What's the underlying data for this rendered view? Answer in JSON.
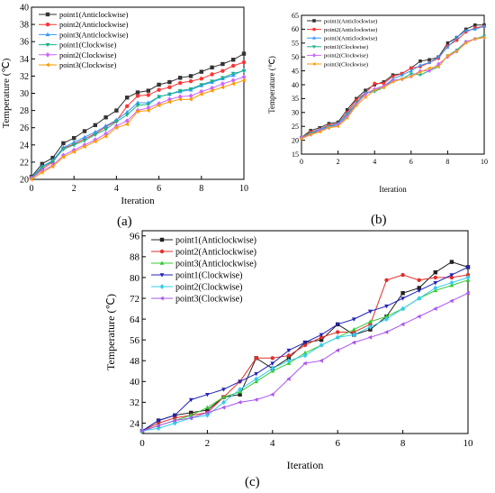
{
  "panels": [
    {
      "label": "(a)"
    },
    {
      "label": "(b)"
    },
    {
      "label": "(c)"
    }
  ],
  "chart_data": [
    {
      "type": "line",
      "panel": "(a)",
      "xlabel": "Iteration",
      "ylabel": "Temperature (℃)",
      "xlim": [
        0,
        10
      ],
      "ylim": [
        20,
        40
      ],
      "xticks": [
        0,
        2,
        4,
        6,
        8,
        10
      ],
      "yticks": [
        20,
        22,
        24,
        26,
        28,
        30,
        32,
        34,
        36,
        38,
        40
      ],
      "legend_position": "top-left",
      "grid": false,
      "x": [
        0,
        0.5,
        1,
        1.5,
        2,
        2.5,
        3,
        3.5,
        4,
        4.5,
        5,
        5.5,
        6,
        6.5,
        7,
        7.5,
        8,
        8.5,
        9,
        9.5,
        10
      ],
      "series": [
        {
          "name": "point1(Anticlockwise)",
          "color": "#333333",
          "marker": "square",
          "values": [
            20.3,
            21.8,
            22.5,
            24.2,
            24.8,
            25.6,
            26.3,
            27.2,
            28.0,
            29.5,
            30.1,
            30.3,
            31.0,
            31.3,
            31.8,
            32.0,
            32.5,
            33.0,
            33.4,
            33.9,
            34.6
          ]
        },
        {
          "name": "point2(Anticlockwise)",
          "color": "#ff3333",
          "marker": "circle",
          "values": [
            20.2,
            21.2,
            22.0,
            23.6,
            24.1,
            24.7,
            25.3,
            26.1,
            26.8,
            28.5,
            29.7,
            29.8,
            30.4,
            30.7,
            31.2,
            31.4,
            31.7,
            32.2,
            32.6,
            33.2,
            33.6
          ]
        },
        {
          "name": "point3(Anticlockwise)",
          "color": "#3399ff",
          "marker": "triangle-up",
          "values": [
            20.2,
            21.5,
            22.2,
            23.7,
            24.3,
            24.9,
            25.5,
            26.2,
            26.9,
            27.8,
            28.9,
            28.9,
            29.6,
            29.9,
            30.2,
            30.4,
            30.9,
            31.3,
            31.7,
            32.1,
            32.7
          ]
        },
        {
          "name": "point1(Clockwise)",
          "color": "#19b38a",
          "marker": "triangle-down",
          "values": [
            20.1,
            21.4,
            22.1,
            23.5,
            24.0,
            24.5,
            25.2,
            25.8,
            26.7,
            27.5,
            28.6,
            28.7,
            29.6,
            29.9,
            30.3,
            30.5,
            31.0,
            31.4,
            31.8,
            32.3,
            32.6
          ]
        },
        {
          "name": "point2(Clockwise)",
          "color": "#cc66ff",
          "marker": "diamond",
          "values": [
            20.1,
            21.0,
            21.6,
            22.8,
            23.4,
            24.0,
            24.6,
            25.3,
            26.2,
            26.8,
            28.0,
            28.3,
            28.8,
            29.3,
            29.6,
            29.7,
            30.2,
            30.6,
            31.1,
            31.5,
            31.9
          ]
        },
        {
          "name": "point3(Clockwise)",
          "color": "#ff9900",
          "marker": "triangle-left",
          "values": [
            20.0,
            20.8,
            21.5,
            22.6,
            23.2,
            23.8,
            24.4,
            25.0,
            26.0,
            26.4,
            27.9,
            28.0,
            28.6,
            29.0,
            29.3,
            29.3,
            29.9,
            30.3,
            30.7,
            31.1,
            31.5
          ]
        }
      ]
    },
    {
      "type": "line",
      "panel": "(b)",
      "xlabel": "Iteration",
      "ylabel": "Temperature (℃)",
      "xlim": [
        0,
        10
      ],
      "ylim": [
        15,
        65
      ],
      "xticks": [
        0,
        2,
        4,
        6,
        8,
        10
      ],
      "yticks": [
        15,
        20,
        25,
        30,
        35,
        40,
        45,
        50,
        55,
        60,
        65
      ],
      "legend_position": "top-left",
      "grid": false,
      "x": [
        0,
        0.5,
        1,
        1.5,
        2,
        2.5,
        3,
        3.5,
        4,
        4.5,
        5,
        5.5,
        6,
        6.5,
        7,
        7.5,
        8,
        8.5,
        9,
        9.5,
        10
      ],
      "series": [
        {
          "name": "point1(Anticlockwise)",
          "color": "#333333",
          "marker": "square",
          "values": [
            21.0,
            23.5,
            24.5,
            26.0,
            26.5,
            31.0,
            35.0,
            38.0,
            40.0,
            41.0,
            43.5,
            44.0,
            46.0,
            48.5,
            49.0,
            50.0,
            55.0,
            57.0,
            60.0,
            61.5,
            61.5
          ]
        },
        {
          "name": "point2(Anticlockwise)",
          "color": "#ff3333",
          "marker": "circle",
          "values": [
            21.0,
            23.0,
            24.0,
            25.5,
            26.0,
            30.0,
            34.5,
            37.0,
            40.5,
            40.5,
            43.0,
            44.0,
            46.0,
            46.5,
            48.0,
            49.5,
            54.0,
            56.0,
            59.0,
            60.5,
            61.0
          ]
        },
        {
          "name": "point3(Anticlockwise)",
          "color": "#3399ff",
          "marker": "triangle-up",
          "values": [
            21.0,
            22.5,
            24.0,
            25.0,
            26.0,
            29.5,
            33.5,
            37.0,
            38.0,
            39.5,
            42.0,
            43.5,
            45.0,
            47.0,
            48.0,
            50.0,
            53.5,
            57.0,
            59.5,
            60.0,
            61.0
          ]
        },
        {
          "name": "point1(Clockwise)",
          "color": "#19b38a",
          "marker": "triangle-down",
          "values": [
            21.0,
            22.5,
            23.5,
            25.0,
            25.5,
            29.0,
            33.5,
            37.0,
            37.5,
            39.0,
            41.5,
            42.0,
            44.0,
            43.5,
            45.0,
            46.5,
            50.5,
            52.5,
            55.5,
            56.5,
            57.5
          ]
        },
        {
          "name": "point2(Clockwise)",
          "color": "#cc66ff",
          "marker": "diamond",
          "values": [
            21.0,
            22.0,
            23.5,
            24.5,
            25.5,
            28.5,
            33.0,
            36.5,
            38.5,
            39.5,
            41.5,
            42.0,
            43.0,
            45.0,
            45.0,
            47.5,
            50.0,
            52.0,
            55.5,
            56.5,
            57.0
          ]
        },
        {
          "name": "point3(Clockwise)",
          "color": "#ff9900",
          "marker": "triangle-left",
          "values": [
            20.5,
            22.0,
            23.0,
            24.5,
            25.0,
            28.0,
            32.5,
            35.5,
            38.0,
            39.0,
            41.0,
            42.0,
            43.0,
            44.5,
            46.0,
            46.5,
            50.5,
            52.0,
            55.0,
            56.5,
            57.0
          ]
        }
      ]
    },
    {
      "type": "line",
      "panel": "(c)",
      "xlabel": "Iteration",
      "ylabel": "Temperature (℃)",
      "xlim": [
        0,
        10
      ],
      "ylim": [
        20,
        98
      ],
      "xticks": [
        0,
        2,
        4,
        6,
        8,
        10
      ],
      "yticks": [
        24,
        32,
        40,
        48,
        56,
        64,
        72,
        80,
        88,
        96
      ],
      "legend_position": "top-left",
      "grid": false,
      "x": [
        0,
        0.5,
        1,
        1.5,
        2,
        2.5,
        3,
        3.5,
        4,
        4.5,
        5,
        5.5,
        6,
        6.5,
        7,
        7.5,
        8,
        8.5,
        9,
        9.5,
        10
      ],
      "series": [
        {
          "name": "point1(Anticlockwise)",
          "color": "#222222",
          "marker": "square",
          "values": [
            21,
            25,
            27,
            28,
            29,
            34,
            35,
            49,
            45,
            49,
            55,
            56,
            62,
            58,
            60,
            65,
            74,
            76,
            82,
            86,
            84
          ]
        },
        {
          "name": "point2(Anticlockwise)",
          "color": "#e0302a",
          "marker": "circle",
          "values": [
            21,
            24,
            26,
            27,
            28,
            34,
            40,
            49,
            49,
            50,
            54,
            57,
            59,
            59,
            62,
            79,
            81,
            79,
            80,
            80,
            81
          ]
        },
        {
          "name": "point3(Anticlockwise)",
          "color": "#33cc33",
          "marker": "triangle-up",
          "values": [
            21,
            23,
            25,
            27,
            30,
            34,
            36,
            40,
            44,
            47,
            51,
            54,
            57,
            60,
            63,
            65,
            68,
            72,
            75,
            77,
            79
          ]
        },
        {
          "name": "point1(Clockwise)",
          "color": "#2222bb",
          "marker": "triangle-down",
          "values": [
            21,
            25,
            27,
            33,
            35,
            37,
            40,
            43,
            47,
            52,
            55,
            58,
            62,
            64,
            67,
            69,
            72,
            75,
            78,
            81,
            84
          ]
        },
        {
          "name": "point2(Clockwise)",
          "color": "#33ccee",
          "marker": "diamond",
          "values": [
            21,
            22,
            24,
            26,
            27,
            32,
            37,
            41,
            45,
            48,
            50,
            54,
            57,
            58,
            61,
            64,
            68,
            72,
            76,
            78,
            80
          ]
        },
        {
          "name": "point3(Clockwise)",
          "color": "#aa55ee",
          "marker": "triangle-left",
          "values": [
            21,
            23,
            25,
            26,
            28,
            30,
            32,
            33,
            35,
            41,
            47,
            48,
            52,
            55,
            57,
            59,
            62,
            65,
            68,
            71,
            74
          ]
        }
      ]
    }
  ]
}
